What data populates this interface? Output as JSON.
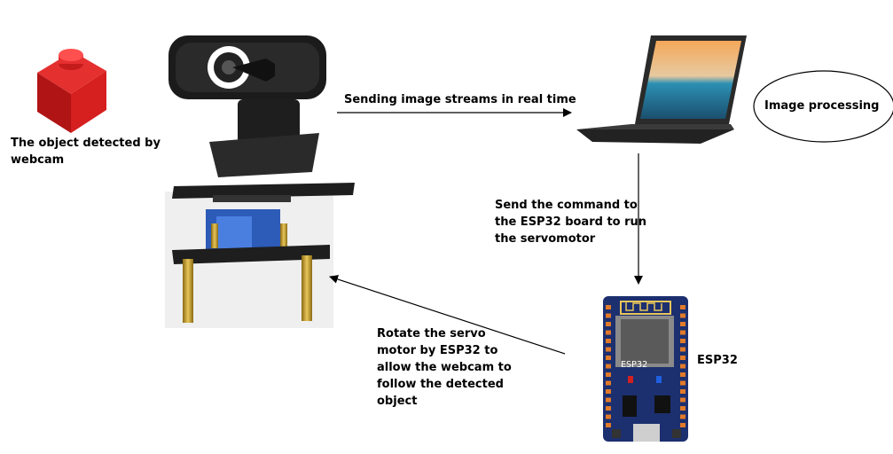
{
  "labels": {
    "object_detected": [
      "The object detected by",
      "webcam"
    ],
    "sending_streams": "Sending image streams in real time",
    "send_command": [
      "Send the command to",
      "the ESP32 board to run",
      "the servomotor"
    ],
    "rotate_servo": [
      "Rotate the servo",
      "motor by ESP32 to",
      "allow the webcam to",
      "follow the detected",
      "object"
    ],
    "esp32": "ESP32",
    "image_processing": "Image processing"
  },
  "board": {
    "chip_text": "ESP32"
  },
  "colors": {
    "object_red": "#d61f1f",
    "board_blue": "#1c2f6f",
    "servo_blue": "#2d5bb8",
    "post_gold": "#c9a227",
    "webcam_black": "#1b1b1b"
  },
  "icons": {
    "object": "red-brick-icon",
    "webcam": "webcam-icon",
    "laptop": "laptop-icon",
    "board": "esp32-board-icon",
    "servo": "servo-mount-icon"
  }
}
